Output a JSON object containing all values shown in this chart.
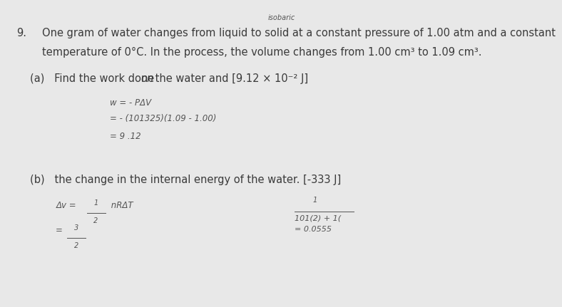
{
  "background_color": "#e8e8e8",
  "title_annotation": "isobaric",
  "problem_number": "9.",
  "problem_text_line1": "One gram of water changes from liquid to solid at a constant pressure of 1.00 atm and a constant",
  "problem_text_line2": "temperature of 0°C. In the process, the volume changes from 1.00 cm³ to 1.09 cm³.",
  "part_a_label_pre": "(a)   Find the work done ",
  "part_a_italic": "on",
  "part_a_rest": " the water and [9.12 × 10⁻² J]",
  "part_a_eq1": "w = - PΔV",
  "part_a_eq2": "= - (101325)(1.09 - 1.00)",
  "part_a_eq3": "= 9 .12",
  "part_b_label": "(b)   the change in the internal energy of the water. [-333 J]",
  "part_b_left_eq1_pre": "Δv = ",
  "part_b_left_eq1_frac_n": "1",
  "part_b_left_eq1_frac_d": "2",
  "part_b_left_eq1_post": " nRΔT",
  "part_b_right_frac_n": "1",
  "part_b_right_eq1": "101(2) + 1(",
  "part_b_left_eq2_pre": "= ",
  "part_b_left_eq2_frac_n": "3",
  "part_b_left_eq2_frac_d": "2",
  "part_b_right_eq2": "= 0.0555",
  "text_color": "#3a3a3a",
  "fs_main": 10.5,
  "fs_eq": 8.5
}
